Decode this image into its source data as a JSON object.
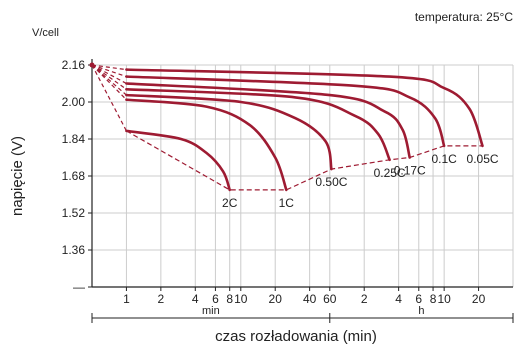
{
  "chart_data": {
    "type": "line",
    "temperature_label": "temperatura: 25°C",
    "y_unit_label": "V/cell",
    "ylabel": "napięcie (V)",
    "xlabel": "czas rozładowania (min)",
    "ylim": [
      1.2,
      2.16
    ],
    "y_ticks": [
      {
        "value": 2.16,
        "label": "2.16"
      },
      {
        "value": 2.0,
        "label": "2.00"
      },
      {
        "value": 1.84,
        "label": "1.84"
      },
      {
        "value": 1.68,
        "label": "1.68"
      },
      {
        "value": 1.52,
        "label": "1.52"
      },
      {
        "value": 1.36,
        "label": "1.36"
      },
      {
        "value": 1.2,
        "label": "—"
      }
    ],
    "x_scale": "log",
    "x_ticks": [
      {
        "minutes": 1,
        "label": "1"
      },
      {
        "minutes": 2,
        "label": "2"
      },
      {
        "minutes": 4,
        "label": "4"
      },
      {
        "minutes": 6,
        "label": "6"
      },
      {
        "minutes": 8,
        "label": "8"
      },
      {
        "minutes": 10,
        "label": "10"
      },
      {
        "minutes": 20,
        "label": "20"
      },
      {
        "minutes": 40,
        "label": "40"
      },
      {
        "minutes": 60,
        "label": "60"
      },
      {
        "minutes": 120,
        "label": "2"
      },
      {
        "minutes": 240,
        "label": "4"
      },
      {
        "minutes": 360,
        "label": "6"
      },
      {
        "minutes": 480,
        "label": "8"
      },
      {
        "minutes": 600,
        "label": "10"
      },
      {
        "minutes": 1200,
        "label": "20"
      }
    ],
    "x_unit_groups": [
      {
        "label": "min",
        "from": 0.5,
        "to": 60
      },
      {
        "label": "h",
        "from": 60,
        "to": 2400
      }
    ],
    "start_point": {
      "minutes": 0.5,
      "voltage": 2.16
    },
    "series": [
      {
        "name": "2C",
        "points": [
          [
            1,
            1.875
          ],
          [
            3,
            1.84
          ],
          [
            5,
            1.78
          ],
          [
            7,
            1.7
          ],
          [
            8,
            1.62
          ]
        ]
      },
      {
        "name": "1C",
        "points": [
          [
            1,
            2.01
          ],
          [
            5,
            1.98
          ],
          [
            12,
            1.9
          ],
          [
            20,
            1.76
          ],
          [
            25,
            1.62
          ]
        ]
      },
      {
        "name": "0.50C",
        "points": [
          [
            1,
            2.03
          ],
          [
            10,
            2.0
          ],
          [
            30,
            1.93
          ],
          [
            55,
            1.83
          ],
          [
            62,
            1.71
          ]
        ]
      },
      {
        "name": "0.25C",
        "points": [
          [
            1,
            2.055
          ],
          [
            30,
            2.02
          ],
          [
            100,
            1.94
          ],
          [
            160,
            1.86
          ],
          [
            200,
            1.75
          ]
        ]
      },
      {
        "name": "0.17C",
        "points": [
          [
            1,
            2.08
          ],
          [
            60,
            2.03
          ],
          [
            180,
            1.96
          ],
          [
            260,
            1.88
          ],
          [
            300,
            1.76
          ]
        ]
      },
      {
        "name": "0.1C",
        "points": [
          [
            1,
            2.11
          ],
          [
            100,
            2.07
          ],
          [
            300,
            2.02
          ],
          [
            500,
            1.93
          ],
          [
            600,
            1.81
          ]
        ]
      },
      {
        "name": "0.05C",
        "points": [
          [
            1,
            2.14
          ],
          [
            200,
            2.11
          ],
          [
            600,
            2.06
          ],
          [
            1000,
            1.97
          ],
          [
            1300,
            1.81
          ]
        ]
      }
    ],
    "end_voltage_line": [
      [
        1,
        1.875
      ],
      [
        8,
        1.62
      ],
      [
        25,
        1.62
      ],
      [
        62,
        1.71
      ],
      [
        200,
        1.75
      ],
      [
        300,
        1.76
      ],
      [
        600,
        1.81
      ],
      [
        1300,
        1.81
      ]
    ],
    "grid": true,
    "colors": {
      "curve": "#9e1b32",
      "grid": "#cccccc",
      "axis": "#222222"
    }
  }
}
